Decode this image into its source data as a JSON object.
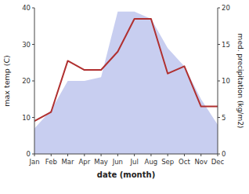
{
  "chart_data": {
    "type": "line",
    "xlabel": "date (month)",
    "ylabel": "max temp (C)",
    "y2label": "med. precipitation (kg/m2)",
    "categories": [
      "Jan",
      "Feb",
      "Mar",
      "Apr",
      "May",
      "Jun",
      "Jul",
      "Aug",
      "Sep",
      "Oct",
      "Nov",
      "Dec"
    ],
    "series": [
      {
        "type": "area",
        "axis": "y2",
        "color": "#aab4e8",
        "values": [
          3.5,
          6,
          10,
          10,
          10.5,
          19.5,
          19.5,
          18.5,
          14.5,
          12,
          7.5,
          4
        ]
      },
      {
        "type": "line",
        "color": "#b03030",
        "values": [
          9,
          11.5,
          25.5,
          23,
          23,
          28,
          37,
          37,
          22,
          24,
          13,
          13
        ]
      }
    ],
    "ylim": [
      0,
      40
    ],
    "yticks": [
      0,
      10,
      20,
      30,
      40
    ],
    "y2lim": [
      0,
      20
    ],
    "y2ticks": [
      0,
      5,
      10,
      15,
      20
    ],
    "grid": false
  }
}
